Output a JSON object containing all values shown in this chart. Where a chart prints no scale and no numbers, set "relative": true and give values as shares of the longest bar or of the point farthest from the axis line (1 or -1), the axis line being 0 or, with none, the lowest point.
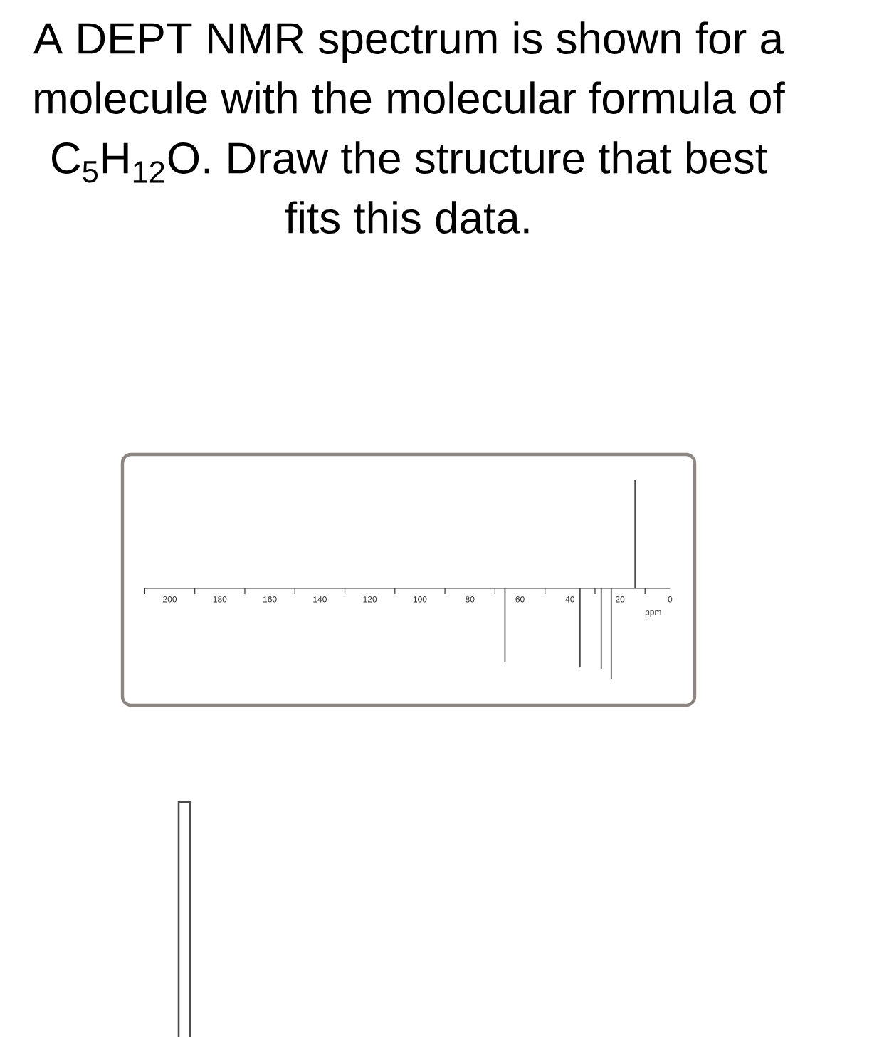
{
  "chart_data": {
    "type": "bar",
    "title": "A DEPT NMR spectrum is shown for a molecule with the molecular formula of C$_{5}$H$_{12}$O. Draw the structure that best fits this data.",
    "xlabel": "ppm",
    "x": [
      66,
      36,
      27.5,
      23.5,
      14
    ],
    "values": [
      -0.68,
      -0.73,
      -0.75,
      -0.84,
      1
    ],
    "color": "#4d4d4d",
    "relative": true,
    "xlim": [
      210,
      0
    ],
    "xticks": [
      {
        "value": 210,
        "label": null
      },
      200,
      {
        "value": 190,
        "label": null
      },
      180,
      {
        "value": 170,
        "label": null
      },
      160,
      {
        "value": 150,
        "label": null
      },
      140,
      {
        "value": 130,
        "label": null
      },
      120,
      {
        "value": 110,
        "label": null
      },
      100,
      {
        "value": 90,
        "label": null
      },
      80,
      {
        "value": 70,
        "label": null
      },
      60,
      {
        "value": 50,
        "label": null
      },
      40,
      {
        "value": 30,
        "label": null
      },
      20,
      {
        "value": 10,
        "label": null
      },
      0
    ]
  }
}
